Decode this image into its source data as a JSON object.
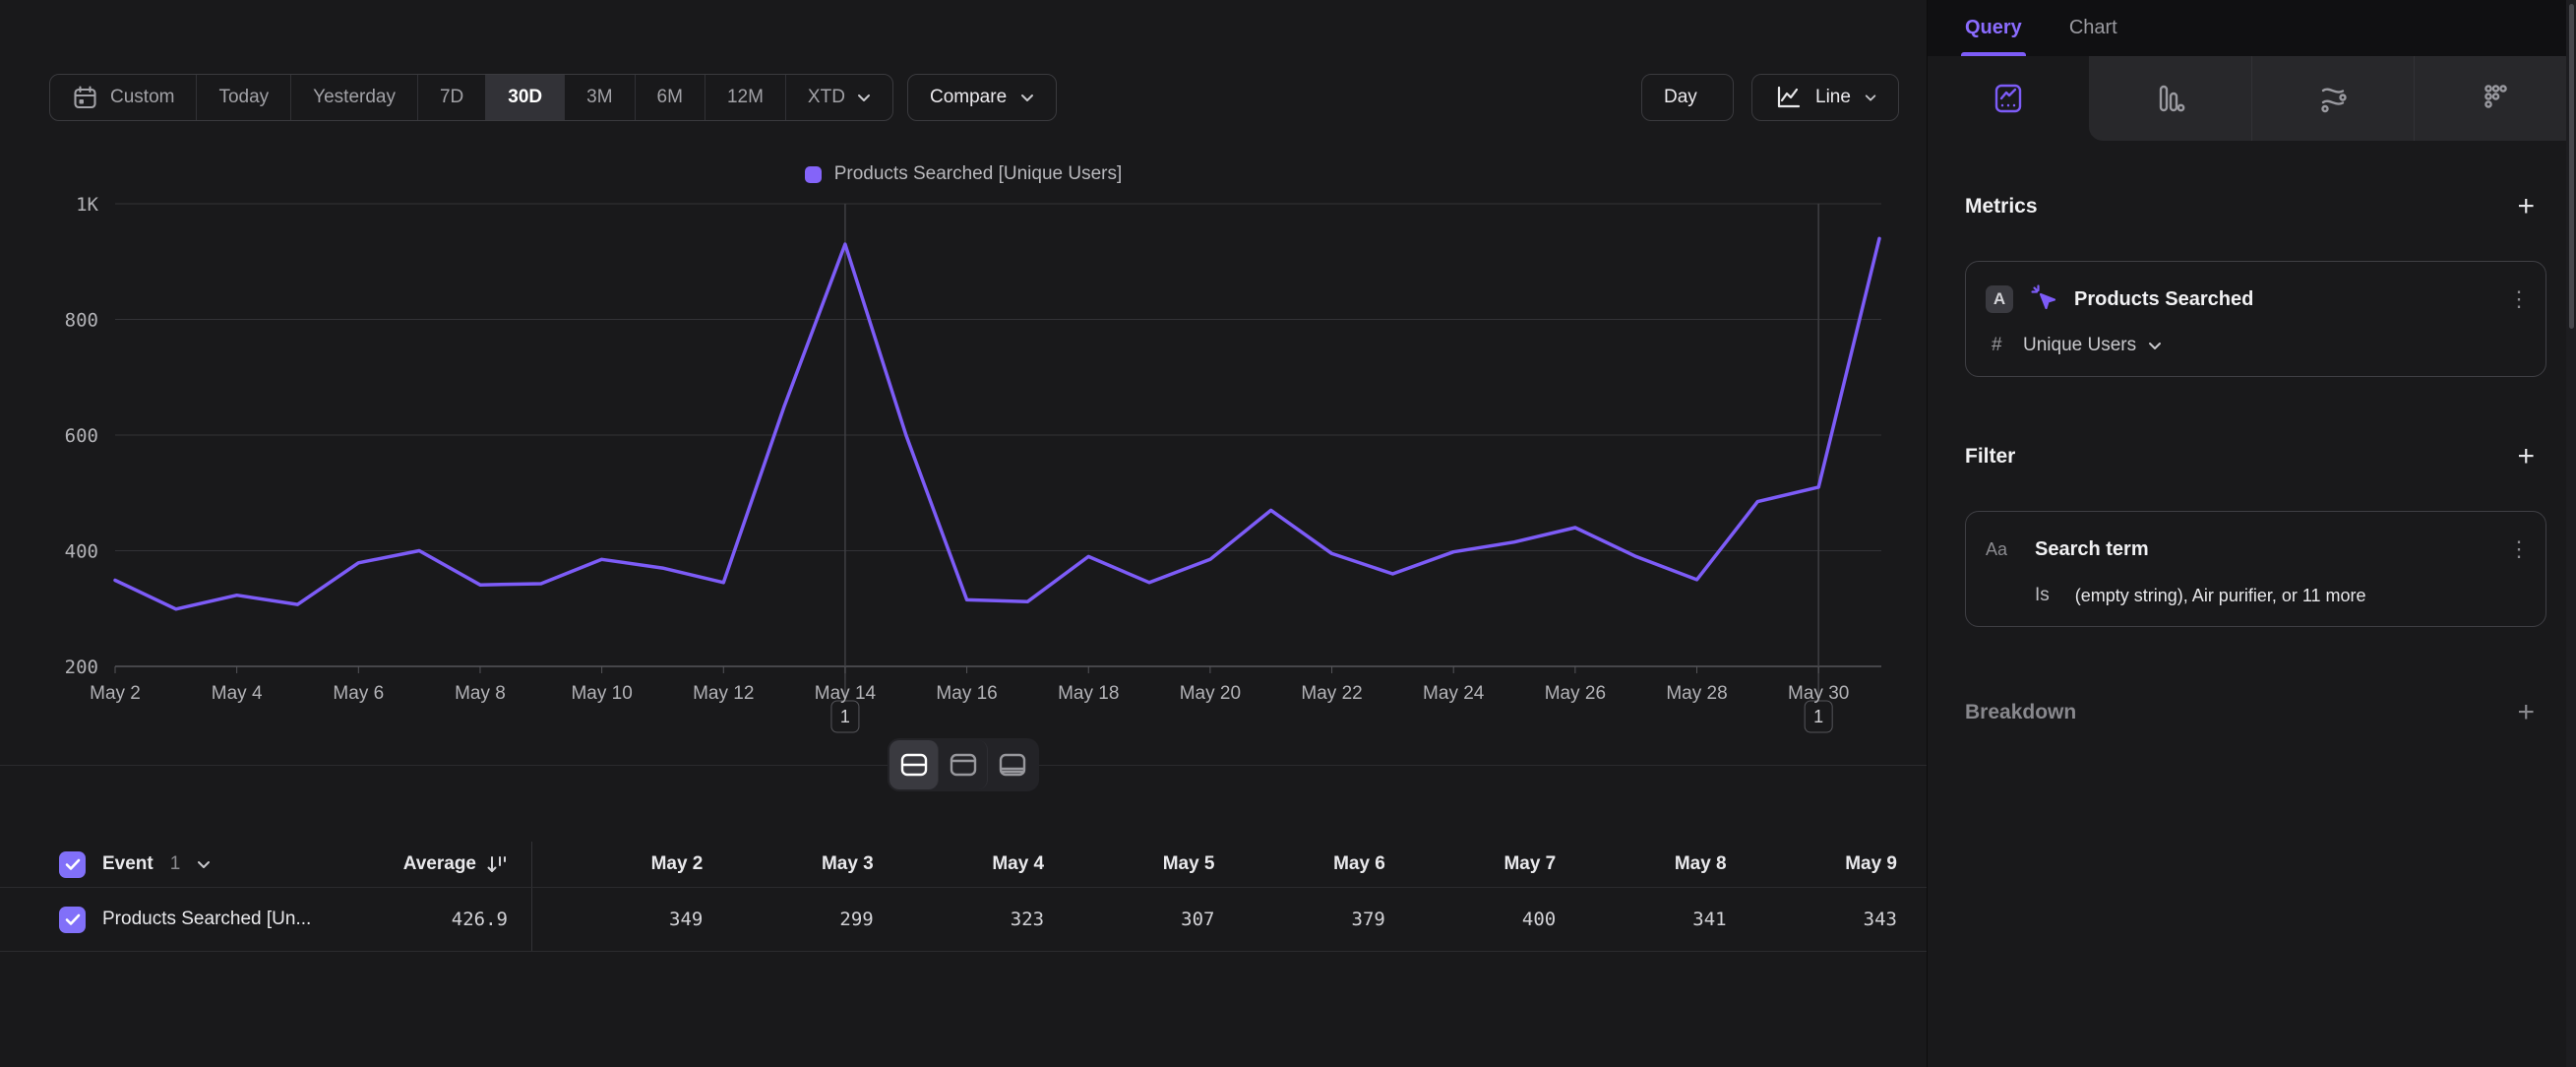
{
  "colors": {
    "accent": "#7d5cf8",
    "legend_swatch": "#8464f9",
    "checkbox": "#8170f9",
    "background": "#19191b",
    "grid": "#323236",
    "axis": "#55555a"
  },
  "toolbar": {
    "ranges": [
      "Custom",
      "Today",
      "Yesterday",
      "7D",
      "30D",
      "3M",
      "6M",
      "12M",
      "XTD"
    ],
    "active_range": "30D",
    "compare_label": "Compare",
    "granularity_label": "Day",
    "chart_type_label": "Line"
  },
  "chart_data": {
    "type": "line",
    "title": "",
    "legend_position": "top",
    "series_name": "Products Searched [Unique Users]",
    "x": [
      "May 2",
      "May 3",
      "May 4",
      "May 5",
      "May 6",
      "May 7",
      "May 8",
      "May 9",
      "May 10",
      "May 11",
      "May 12",
      "May 13",
      "May 14",
      "May 15",
      "May 16",
      "May 17",
      "May 18",
      "May 19",
      "May 20",
      "May 21",
      "May 22",
      "May 23",
      "May 24",
      "May 25",
      "May 26",
      "May 27",
      "May 28",
      "May 29",
      "May 30",
      "May 31"
    ],
    "values": [
      349,
      299,
      323,
      307,
      379,
      400,
      341,
      343,
      385,
      370,
      345,
      650,
      930,
      600,
      315,
      312,
      390,
      345,
      385,
      470,
      395,
      360,
      398,
      415,
      440,
      390,
      350,
      485,
      510,
      940
    ],
    "x_tick_every": 2,
    "y_ticks": [
      {
        "value": 1000,
        "label": "1K"
      },
      {
        "value": 800,
        "label": "800"
      },
      {
        "value": 600,
        "label": "600"
      },
      {
        "value": 400,
        "label": "400"
      },
      {
        "value": 200,
        "label": "200"
      }
    ],
    "ylim": [
      200,
      1000
    ],
    "grid": true,
    "annotations": [
      {
        "x": "May 14",
        "label": "1"
      },
      {
        "x": "May 30",
        "label": "1"
      }
    ]
  },
  "layout_toggles": [
    "split-view",
    "top-panel-view",
    "bottom-panel-view"
  ],
  "table": {
    "event_header": "Event",
    "event_count": "1",
    "average_header": "Average",
    "date_headers": [
      "May 2",
      "May 3",
      "May 4",
      "May 5",
      "May 6",
      "May 7",
      "May 8",
      "May 9"
    ],
    "rows": [
      {
        "checked": true,
        "label": "Products Searched [Un...",
        "average": "426.9",
        "values": [
          "349",
          "299",
          "323",
          "307",
          "379",
          "400",
          "341",
          "343"
        ]
      }
    ]
  },
  "panel": {
    "tabs": [
      {
        "label": "Query",
        "active": true
      },
      {
        "label": "Chart",
        "active": false
      }
    ],
    "chart_type_tabs": [
      "insights",
      "funnels",
      "flows",
      "retention"
    ],
    "metrics": {
      "heading": "Metrics",
      "add_label": "+",
      "card": {
        "badge": "A",
        "event_name": "Products Searched",
        "aggregation_prefix": "#",
        "aggregation": "Unique Users"
      }
    },
    "filter": {
      "heading": "Filter",
      "add_label": "+",
      "card": {
        "badge": "Aa",
        "property": "Search term",
        "operator": "Is",
        "value": "(empty string), Air purifier, or 11 more"
      }
    },
    "breakdown": {
      "heading": "Breakdown",
      "add_label": "+"
    }
  }
}
